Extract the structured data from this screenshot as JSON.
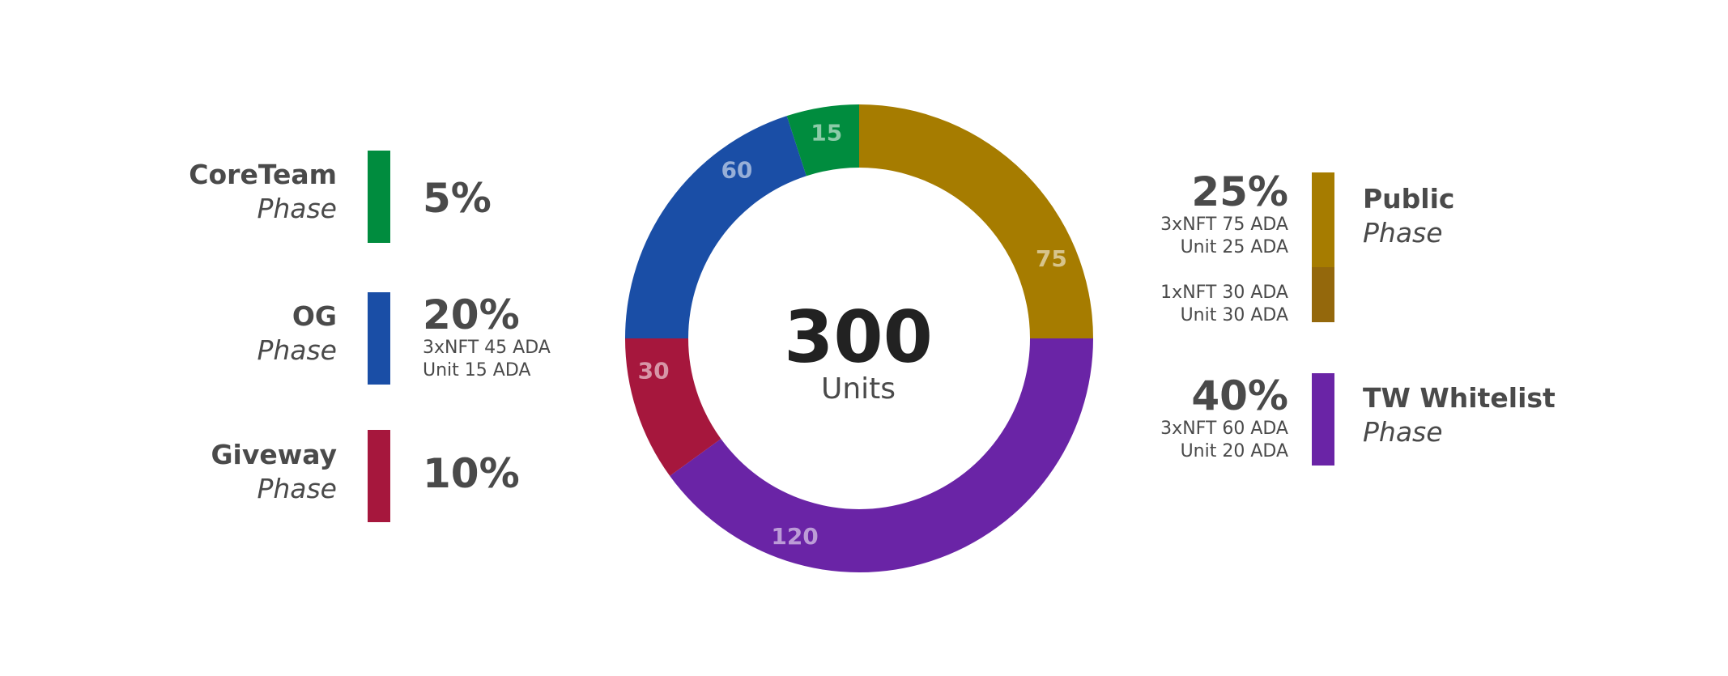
{
  "chart_data": {
    "type": "pie",
    "total": "300",
    "total_label": "Units",
    "slices": [
      {
        "label": "Public",
        "value": 75,
        "value_label": "75",
        "color": "#A67C00"
      },
      {
        "label": "TW Whitelist",
        "value": 120,
        "value_label": "120",
        "color": "#6A24A6"
      },
      {
        "label": "Giveway",
        "value": 30,
        "value_label": "30",
        "color": "#A6173D"
      },
      {
        "label": "OG",
        "value": 60,
        "value_label": "60",
        "color": "#1A4EA6"
      },
      {
        "label": "CoreTeam",
        "value": 15,
        "value_label": "15",
        "color": "#008C3E"
      }
    ]
  },
  "legend": {
    "coreteam": {
      "name": "CoreTeam",
      "phase": "Phase",
      "percent": "5%",
      "color": "#008C3E"
    },
    "og": {
      "name": "OG",
      "phase": "Phase",
      "percent": "20%",
      "detail1": "3xNFT 45 ADA",
      "detail2": "Unit 15 ADA",
      "color": "#1A4EA6"
    },
    "giveway": {
      "name": "Giveway",
      "phase": "Phase",
      "percent": "10%",
      "color": "#A6173D"
    },
    "public": {
      "name": "Public",
      "phase": "Phase",
      "percent": "25%",
      "detail1": "3xNFT 75 ADA",
      "detail2": "Unit 25 ADA",
      "detail3": "1xNFT 30 ADA",
      "detail4": "Unit 30 ADA",
      "color": "#A67C00",
      "color_dark": "#94680C"
    },
    "tw": {
      "name": "TW Whitelist",
      "phase": "Phase",
      "percent": "40%",
      "detail1": "3xNFT 60 ADA",
      "detail2": "Unit 20 ADA",
      "color": "#6A24A6"
    }
  }
}
